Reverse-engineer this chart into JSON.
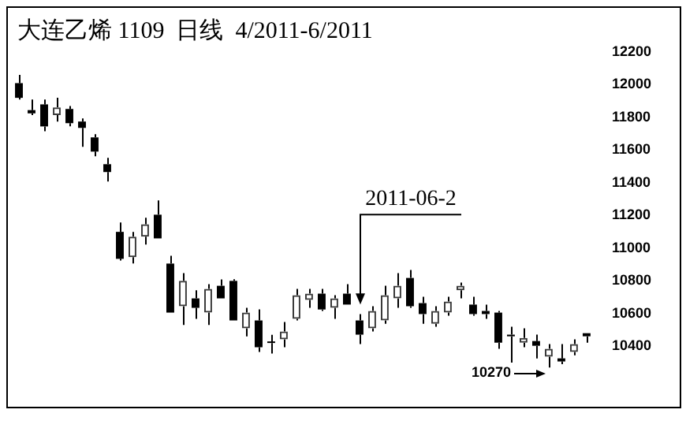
{
  "chart_data": {
    "type": "candlestick",
    "title": "大连乙烯 1109  日线  4/2011-6/2011",
    "categories": [
      null,
      null,
      null,
      null,
      null,
      null,
      null,
      null,
      null,
      null,
      null,
      null,
      null,
      null,
      null,
      null,
      null,
      null,
      null,
      null,
      null,
      null,
      null,
      null,
      null,
      null,
      null,
      null,
      null,
      null,
      null,
      null,
      null,
      null,
      null,
      null,
      null,
      null,
      null,
      null,
      null,
      null,
      null,
      null,
      null,
      null
    ],
    "ohlc": [
      [
        12010,
        12060,
        11910,
        11920
      ],
      [
        11845,
        11910,
        11814,
        11825
      ],
      [
        11880,
        11910,
        11715,
        11745
      ],
      [
        11814,
        11920,
        11775,
        11862
      ],
      [
        11852,
        11870,
        11746,
        11765
      ],
      [
        11775,
        11794,
        11620,
        11736
      ],
      [
        11678,
        11698,
        11562,
        11591
      ],
      [
        11514,
        11553,
        11408,
        11466
      ],
      [
        11100,
        11157,
        10925,
        10935
      ],
      [
        10945,
        11100,
        10906,
        11070
      ],
      [
        11070,
        11186,
        11022,
        11147
      ],
      [
        11205,
        11292,
        11060,
        11060
      ],
      [
        10906,
        10954,
        10606,
        10606
      ],
      [
        10645,
        10848,
        10530,
        10800
      ],
      [
        10693,
        10742,
        10568,
        10635
      ],
      [
        10606,
        10780,
        10530,
        10751
      ],
      [
        10770,
        10809,
        10693,
        10693
      ],
      [
        10800,
        10810,
        10558,
        10558
      ],
      [
        10510,
        10635,
        10461,
        10606
      ],
      [
        10558,
        10626,
        10365,
        10394
      ],
      [
        10425,
        10470,
        10355,
        10420
      ],
      [
        10442,
        10548,
        10394,
        10490
      ],
      [
        10568,
        10751,
        10558,
        10712
      ],
      [
        10683,
        10751,
        10635,
        10722
      ],
      [
        10722,
        10751,
        10616,
        10625
      ],
      [
        10635,
        10712,
        10568,
        10693
      ],
      [
        10722,
        10780,
        10655,
        10655
      ],
      [
        10558,
        10597,
        10413,
        10471
      ],
      [
        10510,
        10645,
        10490,
        10616
      ],
      [
        10558,
        10770,
        10538,
        10712
      ],
      [
        10693,
        10848,
        10635,
        10770
      ],
      [
        10818,
        10867,
        10635,
        10645
      ],
      [
        10664,
        10703,
        10538,
        10597
      ],
      [
        10538,
        10645,
        10519,
        10616
      ],
      [
        10606,
        10703,
        10587,
        10674
      ],
      [
        10742,
        10790,
        10693,
        10770
      ],
      [
        10655,
        10703,
        10587,
        10597
      ],
      [
        10616,
        10655,
        10568,
        10597
      ],
      [
        10606,
        10616,
        10384,
        10422
      ],
      [
        10471,
        10519,
        10300,
        10461
      ],
      [
        10422,
        10510,
        10394,
        10451
      ],
      [
        10432,
        10471,
        10326,
        10403
      ],
      [
        10336,
        10413,
        10270,
        10384
      ],
      [
        10326,
        10413,
        10290,
        10307
      ],
      [
        10365,
        10442,
        10345,
        10413
      ],
      [
        10480,
        10480,
        10422,
        10461
      ]
    ],
    "ylim": [
      10030,
      12480
    ],
    "yticks": [
      10400,
      10600,
      10800,
      11000,
      11200,
      11400,
      11600,
      11800,
      12000,
      12200
    ],
    "grid": false,
    "legend": false,
    "annotations": [
      "2011-06-2",
      "10270"
    ]
  }
}
